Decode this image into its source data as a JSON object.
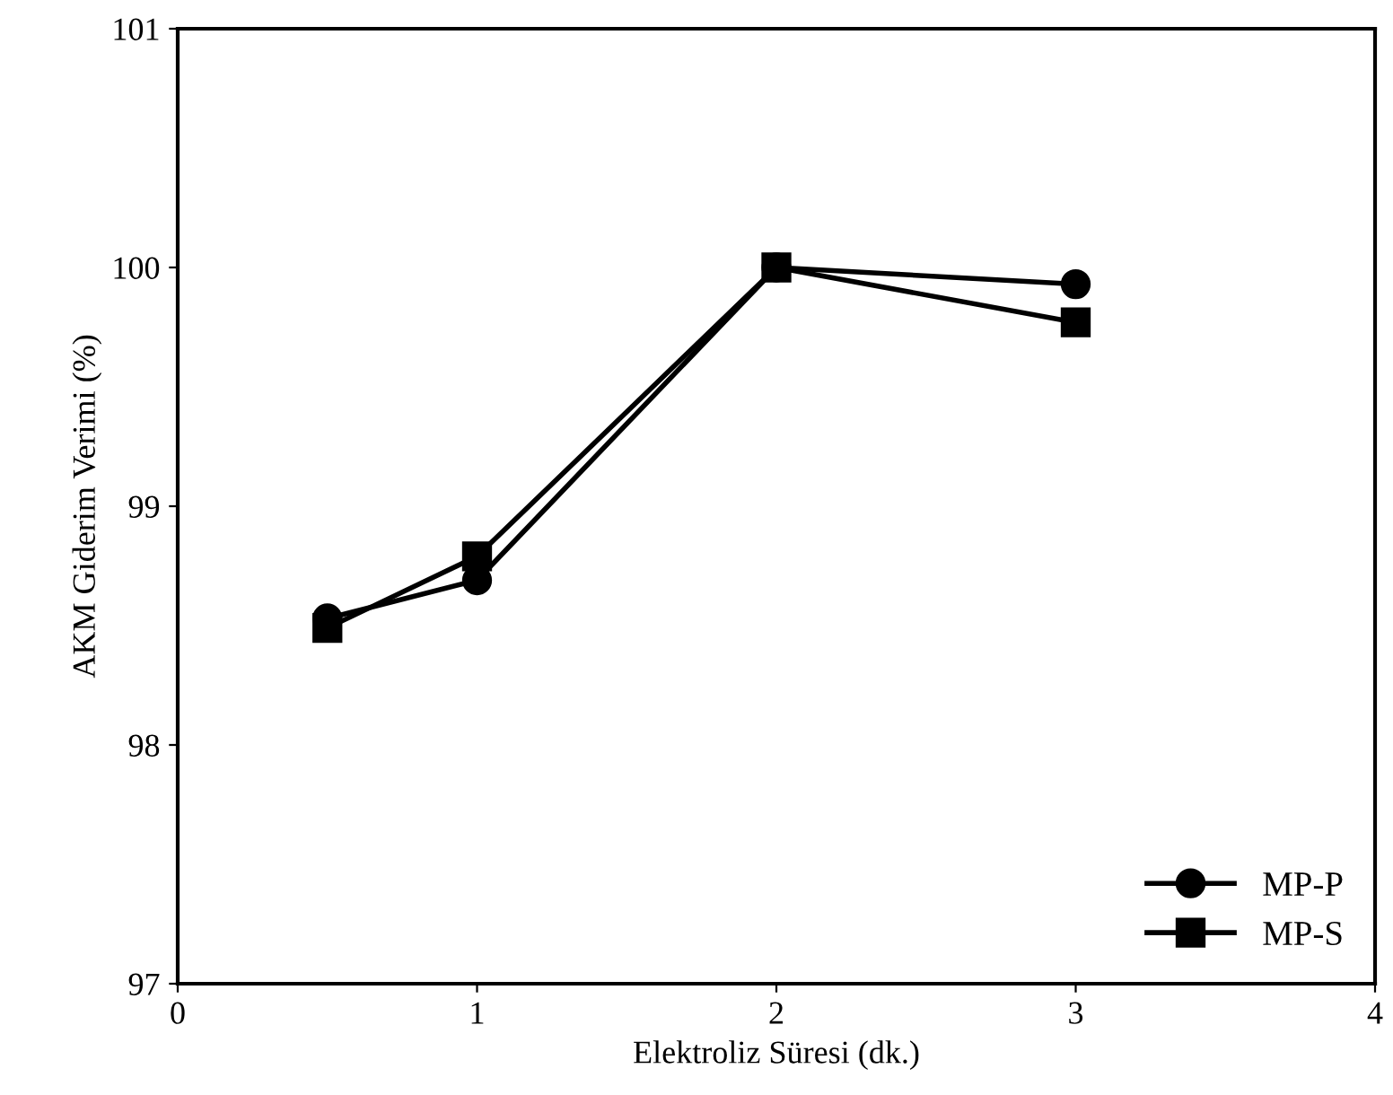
{
  "chart_data": {
    "type": "line",
    "xlabel": "Elektroliz Süresi (dk.)",
    "ylabel": "AKM Giderim Verimi (%)",
    "x": [
      0.5,
      1,
      2,
      3
    ],
    "series": [
      {
        "name": "MP-P",
        "color": "#000000",
        "marker": "circle",
        "values": [
          98.53,
          98.69,
          100.0,
          99.93
        ]
      },
      {
        "name": "MP-S",
        "color": "#000000",
        "marker": "square",
        "values": [
          98.49,
          98.79,
          100.0,
          99.77
        ]
      }
    ],
    "xlim": [
      0,
      4
    ],
    "xticks": [
      0,
      1,
      2,
      3,
      4
    ],
    "ylim": [
      97,
      101
    ],
    "yticks": [
      97,
      98,
      99,
      100,
      101
    ],
    "grid": false,
    "legend": "bottom right",
    "line_style": "solid"
  }
}
